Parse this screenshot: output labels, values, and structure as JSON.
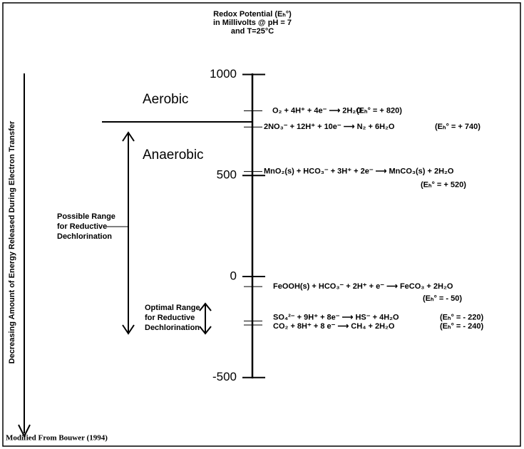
{
  "header": {
    "title_lines": [
      "Redox Potential (Eₕ°)",
      "in Millivolts @ pH = 7",
      "and T=25°C"
    ]
  },
  "axis": {
    "ticks": [
      1000,
      500,
      0,
      -500
    ]
  },
  "zones": [
    "Aerobic",
    "Anaerobic"
  ],
  "left_arrow_label": "Decreasing Amount of Energy Released During Electron Transfer",
  "ranges": [
    {
      "label_lines": [
        "Possible Range",
        "for Reductive",
        "Dechlorination"
      ]
    },
    {
      "label_lines": [
        "Optimal Range",
        "for Reductive",
        "Dechlorination"
      ]
    }
  ],
  "reactions": [
    {
      "equation": "O₂ + 4H⁺ + 4e⁻  ⟶  2H₂O",
      "potential_label": "(Eₕ° = + 820)",
      "potential": 820
    },
    {
      "equation": "2NO₃⁻ + 12H⁺ + 10e⁻ ⟶  N₂ + 6H₂O",
      "potential_label": "(Eₕ° = + 740)",
      "potential": 740
    },
    {
      "equation": "MnO₂(s) + HCO₃⁻ + 3H⁺ + 2e⁻  ⟶  MnCO₃(s) + 2H₂O",
      "potential_label": "(Eₕ° = + 520)",
      "potential": 520
    },
    {
      "equation": "FeOOH(s) + HCO₃⁻ + 2H⁺ + e⁻  ⟶  FeCO₃ + 2H₂O",
      "potential_label": "(Eₕ° = - 50)",
      "potential": -50
    },
    {
      "equation": "SO₄²⁻ + 9H⁺ + 8e⁻  ⟶  HS⁻ + 4H₂O",
      "potential_label": "(Eₕ° = - 220)",
      "potential": -220
    },
    {
      "equation": "CO₂ + 8H⁺ + 8 e⁻  ⟶  CH₄ + 2H₂O",
      "potential_label": "(Eₕ° = - 240)",
      "potential": -240
    }
  ],
  "source": "Modified From Bouwer (1994)"
}
